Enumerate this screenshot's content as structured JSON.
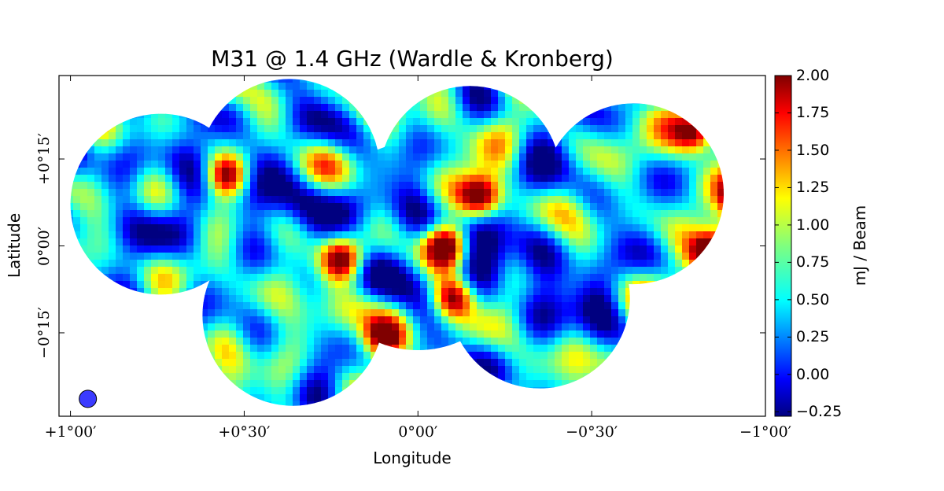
{
  "chart_data": {
    "type": "heatmap",
    "title": "M31 @ 1.4 GHz (Wardle & Kronberg)",
    "xlabel": "Longitude",
    "ylabel": "Latitude",
    "x_ticks": [
      "+1°00′",
      "+0°30′",
      "0°00′",
      "−0°30′",
      "−1°00′"
    ],
    "x_tick_values": [
      1.0,
      0.5,
      0.0,
      -0.5,
      -1.0
    ],
    "y_ticks": [
      "+0°15′",
      "0°00′",
      "−0°15′"
    ],
    "y_tick_values": [
      0.25,
      0.0,
      -0.25
    ],
    "xlim": [
      1.033,
      -1.0
    ],
    "ylim": [
      -0.49,
      0.49
    ],
    "colorbar": {
      "label": "mJ / Beam",
      "ticks": [
        "2.00",
        "1.75",
        "1.50",
        "1.25",
        "1.00",
        "0.75",
        "0.50",
        "0.25",
        "0.00",
        "−0.25"
      ],
      "tick_values": [
        2.0,
        1.75,
        1.5,
        1.25,
        1.0,
        0.75,
        0.5,
        0.25,
        0.0,
        -0.25
      ],
      "range": [
        -0.28,
        2.0
      ],
      "colormap": "jet"
    },
    "fields": [
      {
        "center": [
          0.74,
          0.12
        ],
        "radius": 0.26
      },
      {
        "center": [
          0.37,
          0.22
        ],
        "radius": 0.26
      },
      {
        "center": [
          0.36,
          -0.2
        ],
        "radius": 0.26
      },
      {
        "center": [
          -0.15,
          0.2
        ],
        "radius": 0.26
      },
      {
        "center": [
          -0.35,
          -0.15
        ],
        "radius": 0.26
      },
      {
        "center": [
          -0.62,
          0.15
        ],
        "radius": 0.26
      },
      {
        "center": [
          0.0,
          0.0
        ],
        "radius": 0.3
      }
    ],
    "bright_sources": [
      {
        "x": -0.18,
        "y": 0.14,
        "value": 2.0
      },
      {
        "x": -0.08,
        "y": 0.0,
        "value": 2.0
      },
      {
        "x": -0.1,
        "y": -0.15,
        "value": 2.0
      },
      {
        "x": -0.95,
        "y": 0.14,
        "value": 2.0
      },
      {
        "x": -0.8,
        "y": 0.33,
        "value": 2.0
      },
      {
        "x": -0.85,
        "y": -0.02,
        "value": 2.0
      },
      {
        "x": 0.22,
        "y": -0.04,
        "value": 1.9
      },
      {
        "x": 0.1,
        "y": -0.27,
        "value": 1.8
      },
      {
        "x": 0.55,
        "y": 0.2,
        "value": 1.8
      },
      {
        "x": 0.72,
        "y": -0.32,
        "value": 1.7
      }
    ],
    "beam_marker": {
      "x": 0.95,
      "y": -0.44
    },
    "grid": false
  }
}
